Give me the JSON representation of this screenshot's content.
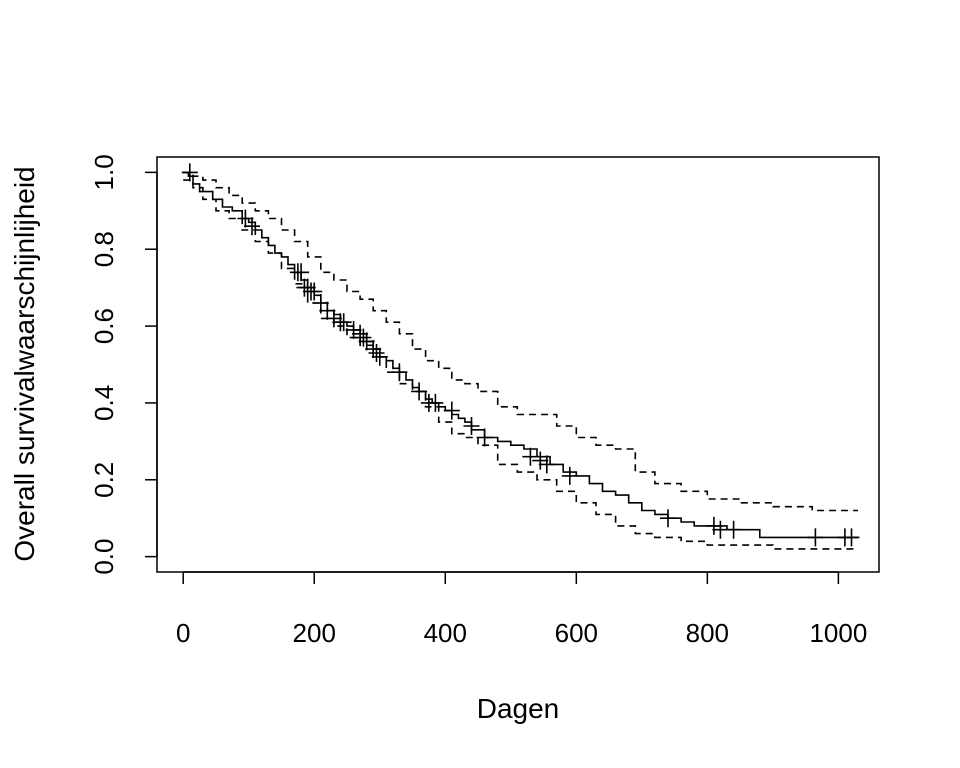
{
  "chart_data": {
    "type": "line",
    "title": "",
    "xlabel": "Dagen",
    "ylabel": "Overall survivalwaarschijnlijheid",
    "xlim": [
      -40,
      1062
    ],
    "ylim": [
      -0.04,
      1.04
    ],
    "xticks": [
      0,
      200,
      400,
      600,
      800,
      1000
    ],
    "xtick_labels": [
      "0",
      "200",
      "400",
      "600",
      "800",
      "1000"
    ],
    "yticks": [
      0.0,
      0.2,
      0.4,
      0.6,
      0.8,
      1.0
    ],
    "ytick_labels": [
      "0.0",
      "0.2",
      "0.4",
      "0.6",
      "0.8",
      "1.0"
    ],
    "grid": false,
    "legend": "none",
    "series": [
      {
        "role": "estimate",
        "style": "solid",
        "color": "#000000",
        "x": [
          0,
          8,
          15,
          25,
          35,
          45,
          60,
          75,
          90,
          100,
          110,
          120,
          130,
          140,
          150,
          160,
          170,
          180,
          190,
          200,
          210,
          220,
          230,
          240,
          250,
          260,
          270,
          280,
          290,
          300,
          310,
          320,
          330,
          340,
          350,
          360,
          370,
          380,
          390,
          400,
          410,
          420,
          430,
          440,
          460,
          480,
          500,
          520,
          540,
          560,
          580,
          600,
          620,
          640,
          660,
          680,
          700,
          720,
          740,
          760,
          780,
          800,
          830,
          880,
          960,
          1030
        ],
        "y": [
          1.0,
          0.99,
          0.97,
          0.95,
          0.95,
          0.93,
          0.91,
          0.9,
          0.88,
          0.87,
          0.85,
          0.83,
          0.81,
          0.79,
          0.78,
          0.76,
          0.74,
          0.72,
          0.7,
          0.68,
          0.66,
          0.64,
          0.63,
          0.61,
          0.6,
          0.59,
          0.58,
          0.56,
          0.54,
          0.52,
          0.51,
          0.49,
          0.48,
          0.46,
          0.44,
          0.43,
          0.41,
          0.4,
          0.39,
          0.38,
          0.37,
          0.36,
          0.35,
          0.33,
          0.31,
          0.3,
          0.29,
          0.28,
          0.26,
          0.24,
          0.22,
          0.21,
          0.19,
          0.17,
          0.16,
          0.14,
          0.12,
          0.11,
          0.1,
          0.09,
          0.08,
          0.08,
          0.07,
          0.05,
          0.05,
          0.05
        ]
      },
      {
        "role": "upper-ci",
        "style": "dashed",
        "color": "#000000",
        "x": [
          0,
          15,
          30,
          50,
          70,
          90,
          110,
          130,
          150,
          170,
          190,
          210,
          230,
          250,
          270,
          290,
          310,
          330,
          350,
          370,
          390,
          410,
          430,
          450,
          480,
          510,
          540,
          570,
          600,
          630,
          660,
          690,
          720,
          760,
          800,
          850,
          900,
          960,
          1030
        ],
        "y": [
          1.0,
          0.99,
          0.98,
          0.96,
          0.94,
          0.92,
          0.9,
          0.88,
          0.85,
          0.82,
          0.78,
          0.74,
          0.72,
          0.69,
          0.67,
          0.64,
          0.61,
          0.58,
          0.54,
          0.51,
          0.49,
          0.46,
          0.45,
          0.43,
          0.39,
          0.37,
          0.37,
          0.34,
          0.31,
          0.29,
          0.28,
          0.22,
          0.19,
          0.17,
          0.15,
          0.14,
          0.13,
          0.12,
          0.12
        ]
      },
      {
        "role": "lower-ci",
        "style": "dashed",
        "color": "#000000",
        "x": [
          0,
          15,
          30,
          50,
          70,
          90,
          110,
          130,
          150,
          170,
          190,
          210,
          230,
          250,
          270,
          290,
          310,
          330,
          350,
          370,
          390,
          410,
          430,
          450,
          480,
          510,
          540,
          570,
          600,
          630,
          660,
          690,
          720,
          760,
          800,
          850,
          900,
          960,
          1030
        ],
        "y": [
          0.98,
          0.96,
          0.93,
          0.9,
          0.88,
          0.85,
          0.82,
          0.79,
          0.75,
          0.71,
          0.66,
          0.62,
          0.6,
          0.57,
          0.55,
          0.52,
          0.48,
          0.45,
          0.43,
          0.39,
          0.35,
          0.32,
          0.31,
          0.29,
          0.24,
          0.22,
          0.2,
          0.17,
          0.14,
          0.11,
          0.08,
          0.06,
          0.05,
          0.04,
          0.03,
          0.03,
          0.02,
          0.02,
          0.02
        ]
      }
    ],
    "censored": {
      "x": [
        10,
        95,
        105,
        175,
        180,
        185,
        190,
        195,
        200,
        210,
        220,
        230,
        240,
        245,
        260,
        270,
        275,
        280,
        290,
        295,
        300,
        330,
        360,
        375,
        385,
        410,
        440,
        460,
        530,
        545,
        555,
        590,
        740,
        810,
        820,
        840,
        965,
        1010,
        1020
      ],
      "y": [
        1.0,
        0.88,
        0.86,
        0.74,
        0.74,
        0.7,
        0.7,
        0.69,
        0.69,
        0.66,
        0.64,
        0.62,
        0.61,
        0.61,
        0.59,
        0.58,
        0.57,
        0.56,
        0.54,
        0.53,
        0.52,
        0.48,
        0.43,
        0.4,
        0.4,
        0.38,
        0.34,
        0.31,
        0.26,
        0.25,
        0.24,
        0.21,
        0.1,
        0.08,
        0.07,
        0.07,
        0.05,
        0.05,
        0.05
      ]
    }
  }
}
